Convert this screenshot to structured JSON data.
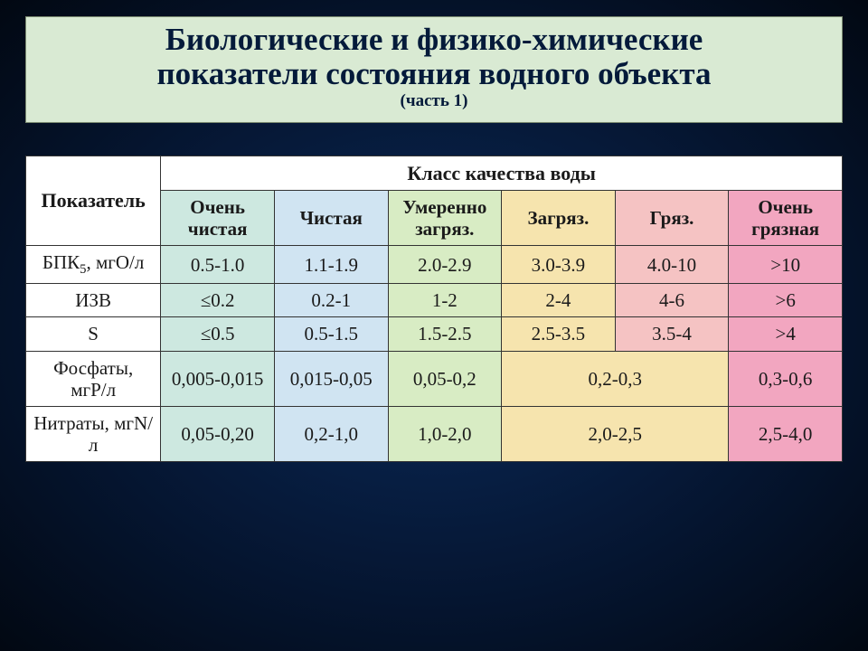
{
  "title": {
    "line1": "Биологические и физико-химические",
    "line2": "показатели состояния водного объекта",
    "subtitle": "(часть 1)"
  },
  "colors": {
    "c1": "#cde8e0",
    "c2": "#d0e4f2",
    "c3": "#d8ecc4",
    "c4": "#f6e4ae",
    "c5": "#f5c3c3",
    "c6": "#f2a6c0",
    "title_bg": "#d9ead3",
    "page_bg_inner": "#0a2a5a",
    "page_bg_outer": "#020812",
    "text": "#1a1a1a",
    "border": "#333333"
  },
  "table": {
    "indicator_header": "Показатель",
    "quality_header": "Класс качества воды",
    "quality_classes": [
      "Очень чистая",
      "Чистая",
      "Умеренно загряз.",
      "Загряз.",
      "Гряз.",
      "Очень грязная"
    ],
    "rows": {
      "r0": {
        "indicator_html": "БПК<sub>5</sub>, мгО/л",
        "cells": [
          "0.5-1.0",
          "1.1-1.9",
          "2.0-2.9",
          "3.0-3.9",
          "4.0-10",
          ">10"
        ]
      },
      "r1": {
        "indicator": "ИЗВ",
        "cells": [
          "≤0.2",
          "0.2-1",
          "1-2",
          "2-4",
          "4-6",
          ">6"
        ]
      },
      "r2": {
        "indicator": "S",
        "cells": [
          "≤0.5",
          "0.5-1.5",
          "1.5-2.5",
          "2.5-3.5",
          "3.5-4",
          ">4"
        ]
      },
      "r3": {
        "indicator": "Фосфаты, мгР/л",
        "cells": [
          "0,005-0,015",
          "0,015-0,05",
          "0,05-0,2",
          "0,2-0,3",
          "0,3-0,6"
        ]
      },
      "r4": {
        "indicator": "Нитраты, мгN/л",
        "cells": [
          "0,05-0,20",
          "0,2-1,0",
          "1,0-2,0",
          "2,0-2,5",
          "2,5-4,0"
        ]
      }
    }
  }
}
